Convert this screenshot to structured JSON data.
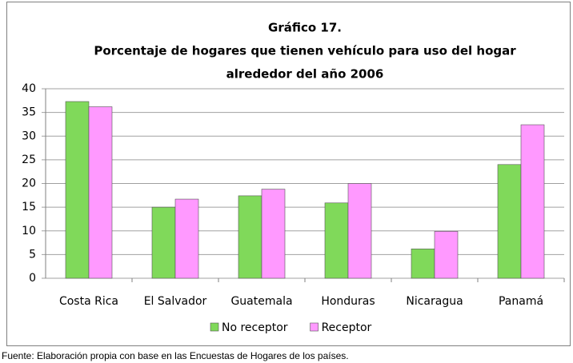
{
  "chart_data": {
    "type": "bar",
    "title": "Gráfico 17.",
    "subtitle": [
      "Porcentaje de hogares que tienen vehículo para uso del hogar",
      "alrededor del año 2006"
    ],
    "categories": [
      "Costa Rica",
      "El Salvador",
      "Guatemala",
      "Honduras",
      "Nicaragua",
      "Panamá"
    ],
    "series": [
      {
        "name": "No receptor",
        "color": "#80d95a",
        "values": [
          37.3,
          15,
          17.4,
          15.9,
          6.2,
          24
        ]
      },
      {
        "name": "Receptor",
        "color": "#ff99ff",
        "values": [
          36.2,
          16.7,
          18.8,
          20,
          9.9,
          32.4
        ]
      }
    ],
    "ylim": [
      0,
      40
    ],
    "yticks": [
      0,
      5,
      10,
      15,
      20,
      25,
      30,
      35,
      40
    ],
    "grid": true,
    "legend": "bottom",
    "source": "Fuente: Elaboración propia con base en las Encuestas de Hogares de los países."
  }
}
